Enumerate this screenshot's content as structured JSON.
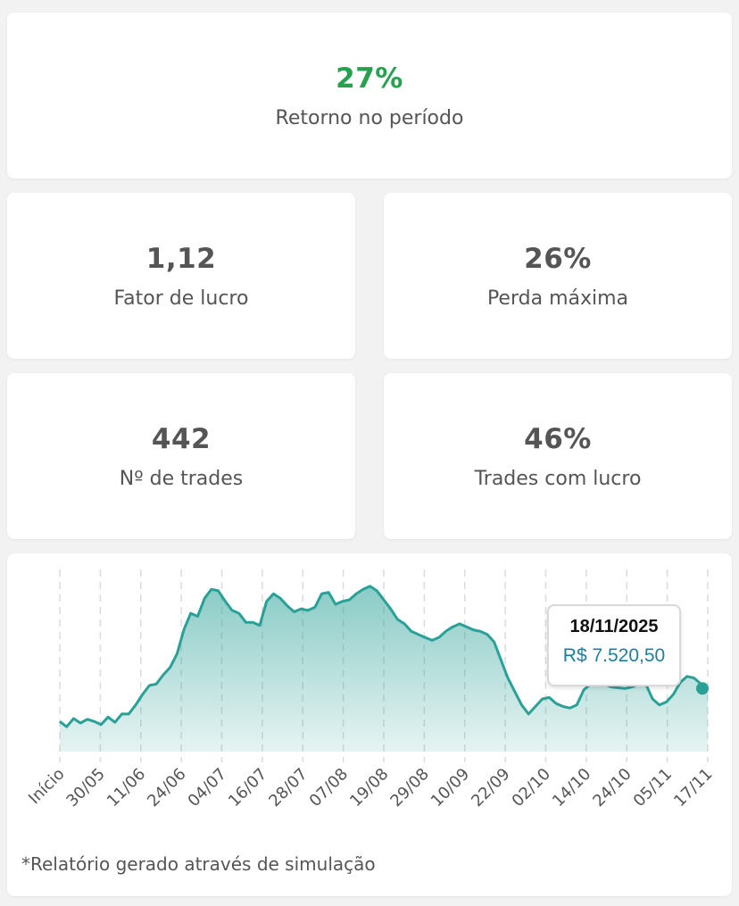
{
  "stats": {
    "return": {
      "value": "27%",
      "label": "Retorno no período"
    },
    "profit_factor": {
      "value": "1,12",
      "label": "Fator de lucro"
    },
    "max_drawdown": {
      "value": "26%",
      "label": "Perda máxima"
    },
    "trades": {
      "value": "442",
      "label": "Nº de trades"
    },
    "win_rate": {
      "value": "46%",
      "label": "Trades com lucro"
    }
  },
  "colors": {
    "positive": "#27a04f",
    "text": "#555555",
    "line": "#2aa197",
    "tooltip_value": "#1d7fa0"
  },
  "chart_data": {
    "type": "area",
    "x_ticks": [
      "Início",
      "30/05",
      "11/06",
      "24/06",
      "04/07",
      "16/07",
      "28/07",
      "07/08",
      "19/08",
      "29/08",
      "10/09",
      "22/09",
      "02/10",
      "14/10",
      "24/10",
      "05/11",
      "17/11"
    ],
    "grid": "vertical dashed",
    "y_axis_shown": false,
    "tooltip": {
      "date": "18/11/2025",
      "value": "R$ 7.520,50"
    },
    "series": [
      {
        "values": [
          0.0,
          -0.07,
          0.04,
          -0.02,
          0.03,
          0.0,
          -0.04,
          0.06,
          -0.01,
          0.1,
          0.1,
          0.22,
          0.36,
          0.48,
          0.5,
          0.62,
          0.72,
          0.9,
          1.22,
          1.44,
          1.4,
          1.64,
          1.76,
          1.74,
          1.6,
          1.48,
          1.44,
          1.32,
          1.32,
          1.28,
          1.6,
          1.7,
          1.64,
          1.54,
          1.46,
          1.5,
          1.48,
          1.52,
          1.7,
          1.72,
          1.56,
          1.6,
          1.62,
          1.7,
          1.76,
          1.8,
          1.74,
          1.62,
          1.5,
          1.36,
          1.3,
          1.2,
          1.16,
          1.12,
          1.08,
          1.12,
          1.2,
          1.26,
          1.3,
          1.26,
          1.22,
          1.2,
          1.16,
          1.06,
          0.82,
          0.58,
          0.4,
          0.22,
          0.1,
          0.2,
          0.3,
          0.32,
          0.24,
          0.2,
          0.18,
          0.22,
          0.42,
          0.5,
          0.7,
          0.5,
          0.46,
          0.45,
          0.44,
          0.46,
          0.5,
          0.5,
          0.3,
          0.22,
          0.26,
          0.36,
          0.52,
          0.6,
          0.58,
          0.5,
          0.44
        ]
      }
    ]
  },
  "footnote": "*Relatório gerado através de simulação"
}
